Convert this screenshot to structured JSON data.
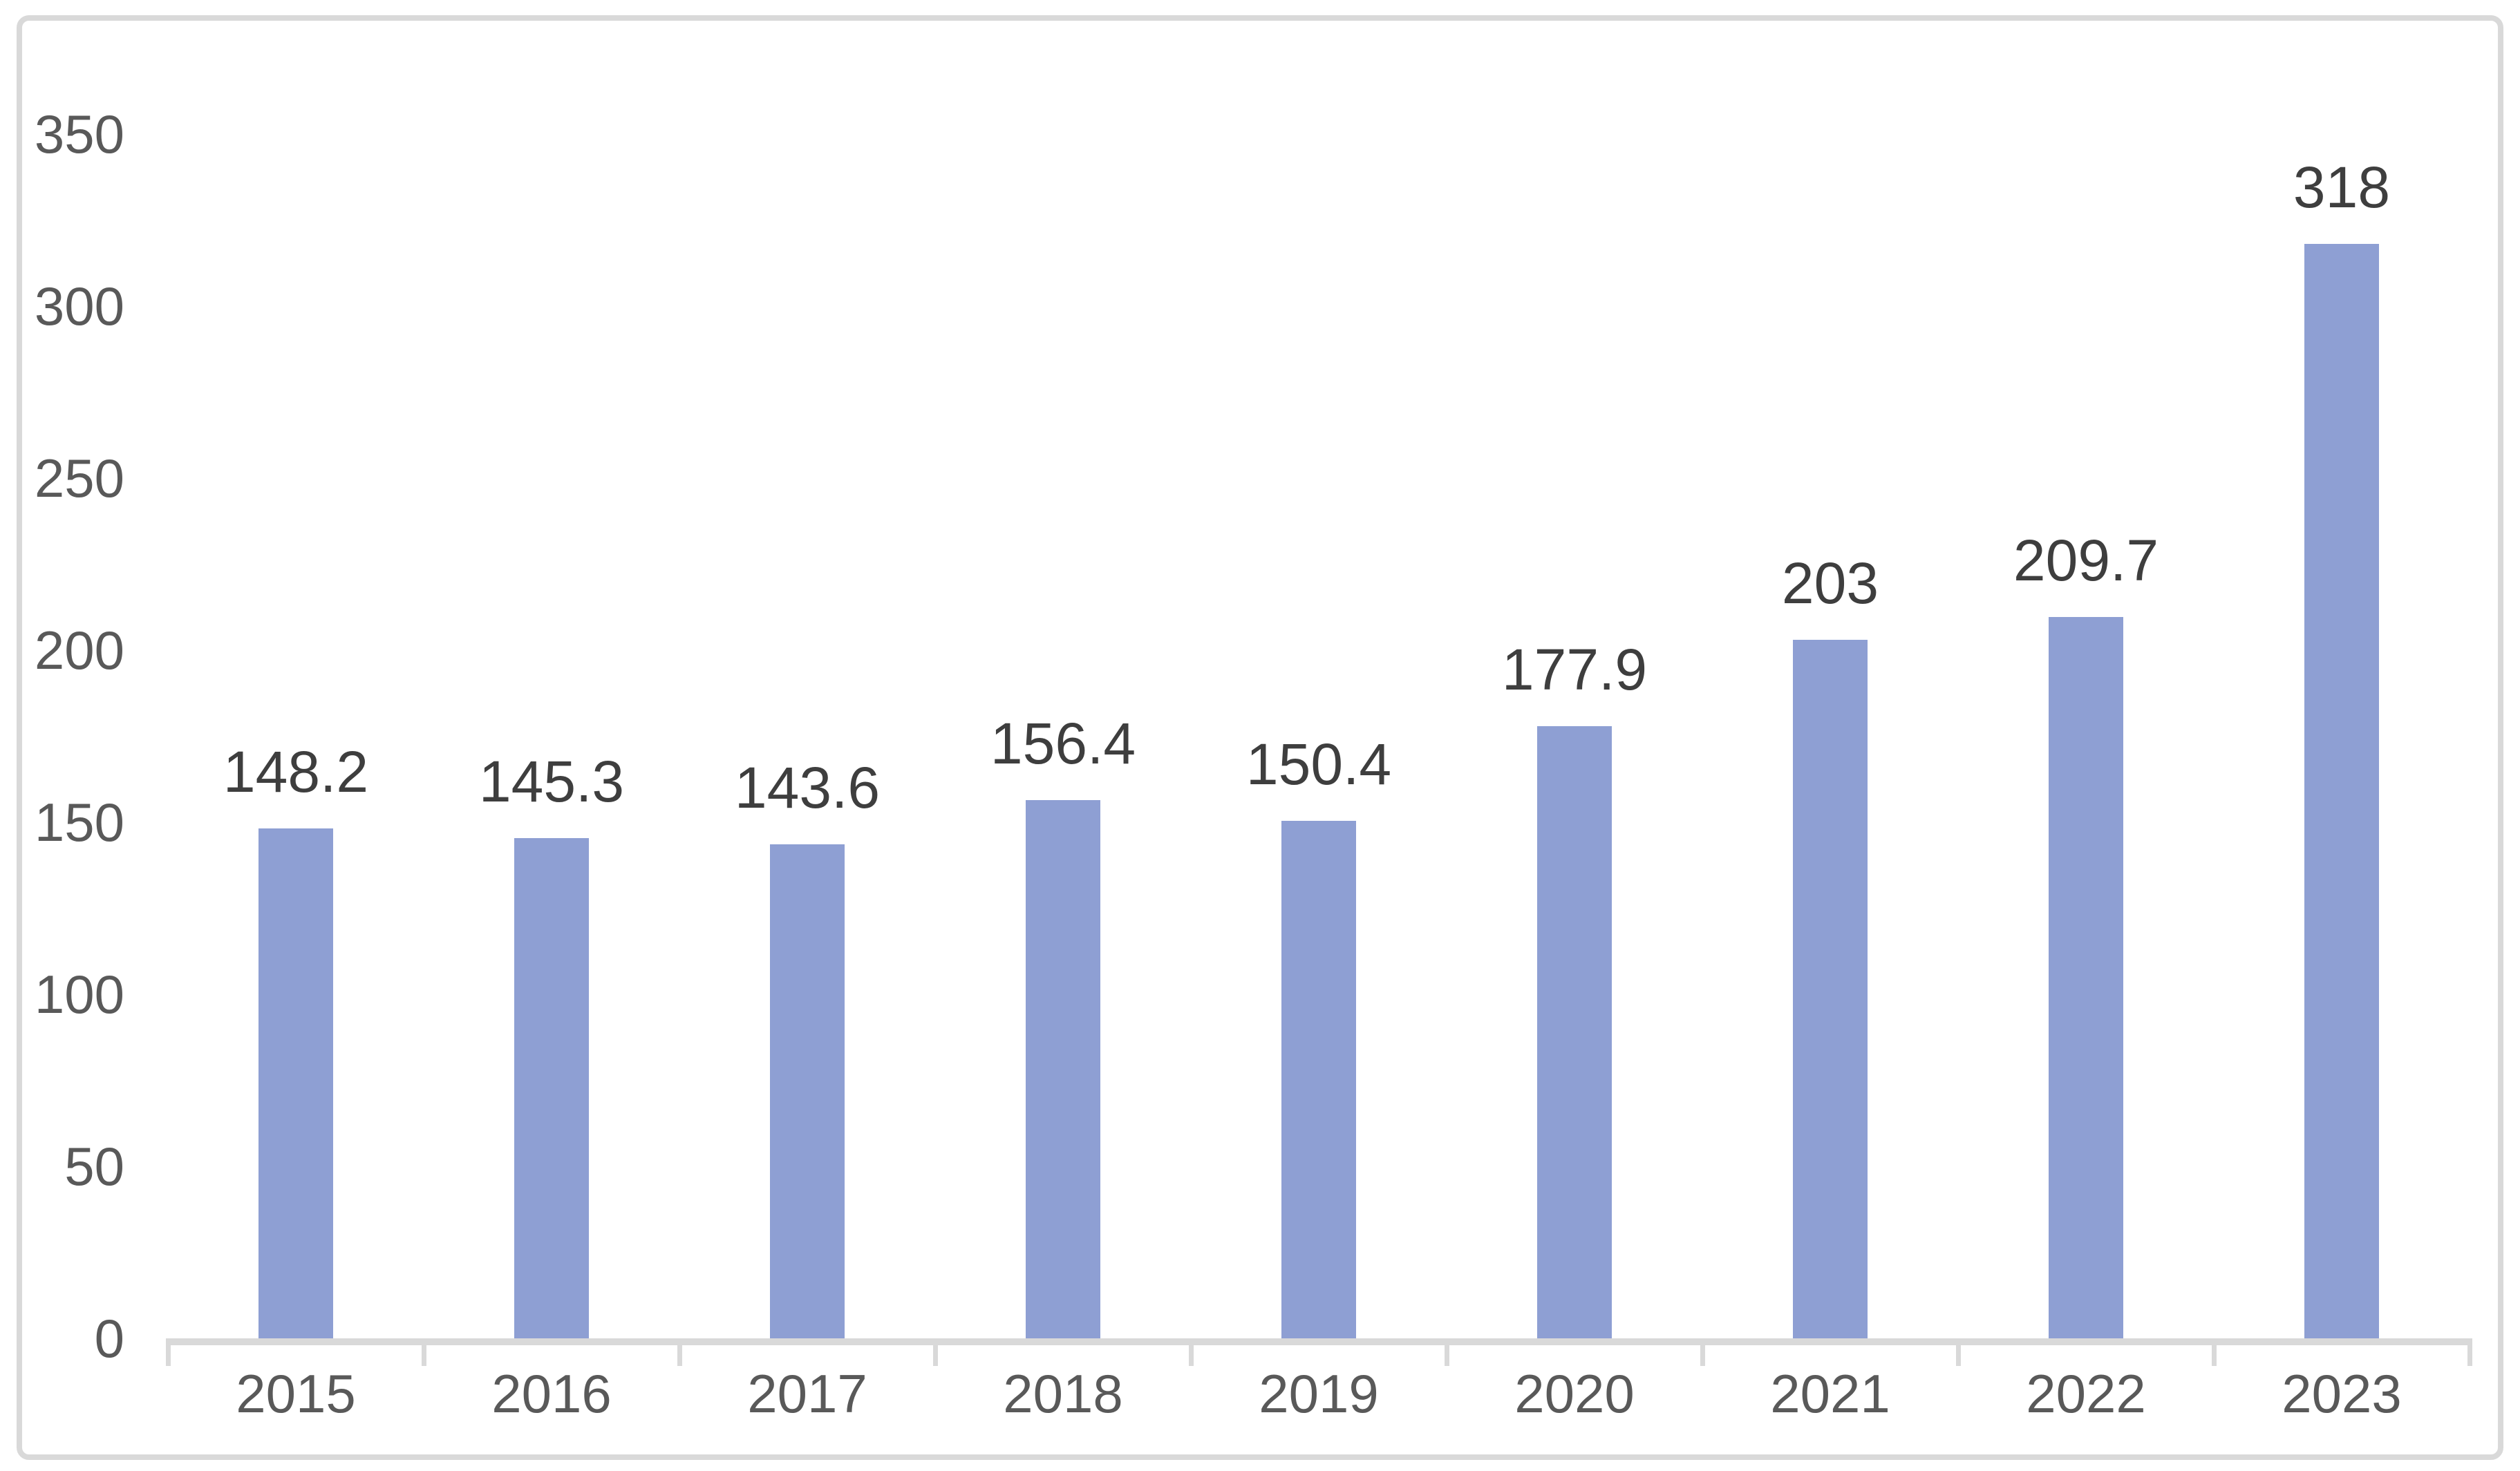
{
  "chart_data": {
    "type": "bar",
    "title": "",
    "xlabel": "",
    "ylabel": "",
    "categories": [
      "2015",
      "2016",
      "2017",
      "2018",
      "2019",
      "2020",
      "2021",
      "2022",
      "2023"
    ],
    "values": [
      148.2,
      145.3,
      143.6,
      156.4,
      150.4,
      177.9,
      203,
      209.7,
      318
    ],
    "value_labels": [
      "148.2",
      "145.3",
      "143.6",
      "156.4",
      "150.4",
      "177.9",
      "203",
      "209.7",
      "318"
    ],
    "ylim": [
      0,
      350
    ],
    "yticks": [
      0,
      50,
      100,
      150,
      200,
      250,
      300,
      350
    ],
    "ytick_labels": [
      "0",
      "50",
      "100",
      "150",
      "200",
      "250",
      "300",
      "350"
    ],
    "grid": false,
    "legend": "none",
    "bar_color": "#8E9FD3",
    "data_label_color": "#3E3E3E",
    "axis_label_color": "#595959",
    "axis_line_color": "#D9D9D9",
    "frame_border_color": "#D9D9D9",
    "background_color": "#FFFFFF"
  }
}
